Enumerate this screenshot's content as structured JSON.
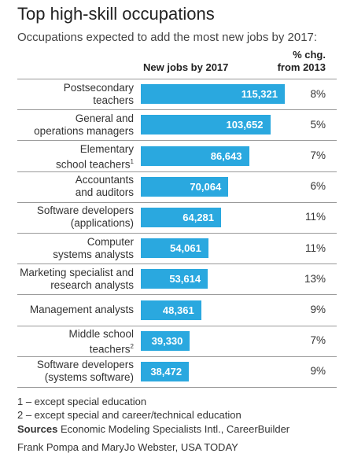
{
  "title": "Top high-skill occupations",
  "subtitle": "Occupations expected to add the most new jobs by 2017:",
  "column_headers": {
    "jobs": "New jobs by 2017",
    "pct_line1": "% chg.",
    "pct_line2": "from 2013"
  },
  "colors": {
    "bar": "#2aa8df",
    "bar_text": "#ffffff",
    "divider": "#9a9a9a"
  },
  "chart_data": {
    "type": "bar",
    "orientation": "horizontal",
    "title": "Top high-skill occupations",
    "subtitle": "Occupations expected to add the most new jobs by 2017:",
    "value_label": "New jobs by 2017",
    "pct_label": "% chg. from 2013",
    "rows": [
      {
        "label_lines": [
          "Postsecondary",
          "teachers"
        ],
        "footnote": "",
        "value": 115321,
        "value_text": "115,321",
        "pct": "8%"
      },
      {
        "label_lines": [
          "General and",
          "operations managers"
        ],
        "footnote": "",
        "value": 103652,
        "value_text": "103,652",
        "pct": "5%"
      },
      {
        "label_lines": [
          "Elementary",
          "school teachers"
        ],
        "footnote": "1",
        "value": 86643,
        "value_text": "86,643",
        "pct": "7%"
      },
      {
        "label_lines": [
          "Accountants",
          "and auditors"
        ],
        "footnote": "",
        "value": 70064,
        "value_text": "70,064",
        "pct": "6%"
      },
      {
        "label_lines": [
          "Software developers",
          "(applications)"
        ],
        "footnote": "",
        "value": 64281,
        "value_text": "64,281",
        "pct": "11%"
      },
      {
        "label_lines": [
          "Computer",
          "systems analysts"
        ],
        "footnote": "",
        "value": 54061,
        "value_text": "54,061",
        "pct": "11%"
      },
      {
        "label_lines": [
          "Marketing specialist and",
          "research analysts"
        ],
        "footnote": "",
        "value": 53614,
        "value_text": "53,614",
        "pct": "13%"
      },
      {
        "label_lines": [
          "Management analysts"
        ],
        "footnote": "",
        "value": 48361,
        "value_text": "48,361",
        "pct": "9%"
      },
      {
        "label_lines": [
          "Middle school",
          "teachers"
        ],
        "footnote": "2",
        "value": 39330,
        "value_text": "39,330",
        "pct": "7%"
      },
      {
        "label_lines": [
          "Software developers",
          "(systems software)"
        ],
        "footnote": "",
        "value": 38472,
        "value_text": "38,472",
        "pct": "9%"
      }
    ]
  },
  "notes": {
    "footnote1": "1 – except special education",
    "footnote2": "2 – except special and career/technical education",
    "sources_label": "Sources",
    "sources_text": "Economic Modeling Specialists Intl., CareerBuilder",
    "credit": "Frank Pompa and MaryJo Webster, USA TODAY"
  }
}
